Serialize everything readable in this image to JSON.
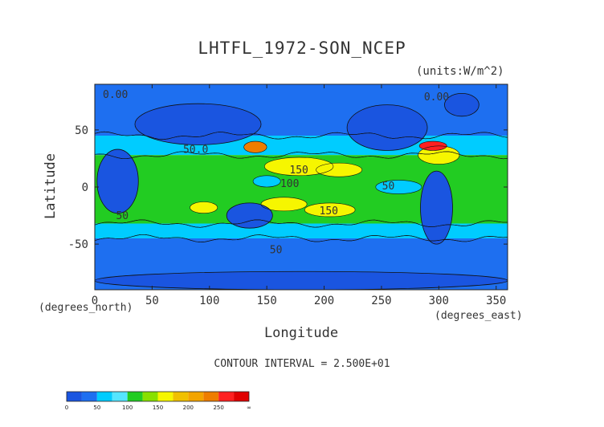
{
  "chart_data": {
    "type": "heatmap",
    "title": "LHTFL_1972-SON_NCEP",
    "units_label": "(units:W/m^2)",
    "xlabel": "Longitude",
    "ylabel": "Latitude",
    "x_unit_label": "(degrees_east)",
    "y_unit_label": "(degrees_north)",
    "xlim": [
      0,
      360
    ],
    "ylim": [
      -90,
      90
    ],
    "x_ticks": [
      0,
      50,
      100,
      150,
      200,
      250,
      300,
      350
    ],
    "y_ticks": [
      50,
      0,
      -50
    ],
    "contour_interval_text": "CONTOUR INTERVAL = 2.500E+01",
    "contour_labels": [
      {
        "text": "0.00",
        "lon": 18,
        "lat": 78
      },
      {
        "text": "0.00",
        "lon": 298,
        "lat": 76
      },
      {
        "text": "50.0",
        "lon": 88,
        "lat": 30
      },
      {
        "text": "150",
        "lon": 178,
        "lat": 12
      },
      {
        "text": "100",
        "lon": 170,
        "lat": 0
      },
      {
        "text": "150",
        "lon": 204,
        "lat": -24
      },
      {
        "text": "50",
        "lon": 256,
        "lat": -2
      },
      {
        "text": "50",
        "lon": 24,
        "lat": -28
      },
      {
        "text": "50",
        "lon": 158,
        "lat": -58
      }
    ],
    "colorbar": {
      "bins": [
        {
          "min": 0,
          "max": 25,
          "color": "#1a55e0"
        },
        {
          "min": 25,
          "max": 50,
          "color": "#1e6ff0"
        },
        {
          "min": 50,
          "max": 75,
          "color": "#00ccff"
        },
        {
          "min": 75,
          "max": 100,
          "color": "#55e5ff"
        },
        {
          "min": 100,
          "max": 125,
          "color": "#22cc22"
        },
        {
          "min": 125,
          "max": 150,
          "color": "#88e000"
        },
        {
          "min": 150,
          "max": 175,
          "color": "#f6f600"
        },
        {
          "min": 175,
          "max": 200,
          "color": "#f0c000"
        },
        {
          "min": 200,
          "max": 225,
          "color": "#f3a400"
        },
        {
          "min": 225,
          "max": 250,
          "color": "#ee7d00"
        },
        {
          "min": 250,
          "max": 275,
          "color": "#ff2020"
        },
        {
          "min": 275,
          "max": 300,
          "color": "#e00000"
        }
      ],
      "tick_labels": [
        "0",
        "50",
        "100",
        "150",
        "200",
        "250",
        "∞"
      ]
    },
    "regions": [
      {
        "type": "band",
        "value": 30,
        "lat": [
          45,
          90
        ],
        "lon": [
          0,
          360
        ]
      },
      {
        "type": "band",
        "value": 60,
        "lat": [
          28,
          45
        ],
        "lon": [
          0,
          360
        ]
      },
      {
        "type": "band",
        "value": 110,
        "lat": [
          -32,
          28
        ],
        "lon": [
          0,
          360
        ]
      },
      {
        "type": "band",
        "value": 70,
        "lat": [
          -45,
          -32
        ],
        "lon": [
          0,
          360
        ]
      },
      {
        "type": "band",
        "value": 30,
        "lat": [
          -90,
          -45
        ],
        "lon": [
          0,
          360
        ]
      },
      {
        "type": "blob",
        "value": 160,
        "lon": 178,
        "lat": 18,
        "rlon": 30,
        "rlat": 8
      },
      {
        "type": "blob",
        "value": 160,
        "lon": 213,
        "lat": 15,
        "rlon": 20,
        "rlat": 6
      },
      {
        "type": "blob",
        "value": 160,
        "lon": 165,
        "lat": -15,
        "rlon": 20,
        "rlat": 6
      },
      {
        "type": "blob",
        "value": 160,
        "lon": 205,
        "lat": -20,
        "rlon": 22,
        "rlat": 6
      },
      {
        "type": "blob",
        "value": 160,
        "lon": 95,
        "lat": -18,
        "rlon": 12,
        "rlat": 5
      },
      {
        "type": "blob",
        "value": 160,
        "lon": 300,
        "lat": 28,
        "rlon": 18,
        "rlat": 8
      },
      {
        "type": "blob",
        "value": 230,
        "lon": 140,
        "lat": 35,
        "rlon": 10,
        "rlat": 5
      },
      {
        "type": "blob",
        "value": 260,
        "lon": 295,
        "lat": 36,
        "rlon": 12,
        "rlat": 4
      },
      {
        "type": "blob",
        "value": 70,
        "lon": 150,
        "lat": 5,
        "rlon": 12,
        "rlat": 5
      },
      {
        "type": "blob",
        "value": 70,
        "lon": 265,
        "lat": 0,
        "rlon": 20,
        "rlat": 6
      }
    ],
    "land": [
      {
        "name": "north-america",
        "lon": 255,
        "lat": 52,
        "rlon": 35,
        "rlat": 20
      },
      {
        "name": "greenland",
        "lon": 320,
        "lat": 72,
        "rlon": 15,
        "rlat": 10
      },
      {
        "name": "eurasia",
        "lon": 90,
        "lat": 55,
        "rlon": 55,
        "rlat": 18
      },
      {
        "name": "africa",
        "lon": 20,
        "lat": 5,
        "rlon": 18,
        "rlat": 28
      },
      {
        "name": "south-america",
        "lon": 298,
        "lat": -18,
        "rlon": 14,
        "rlat": 32
      },
      {
        "name": "australia",
        "lon": 135,
        "lat": -25,
        "rlon": 20,
        "rlat": 11
      },
      {
        "name": "antarctica",
        "lon": 180,
        "lat": -82,
        "rlon": 180,
        "rlat": 8
      }
    ]
  }
}
